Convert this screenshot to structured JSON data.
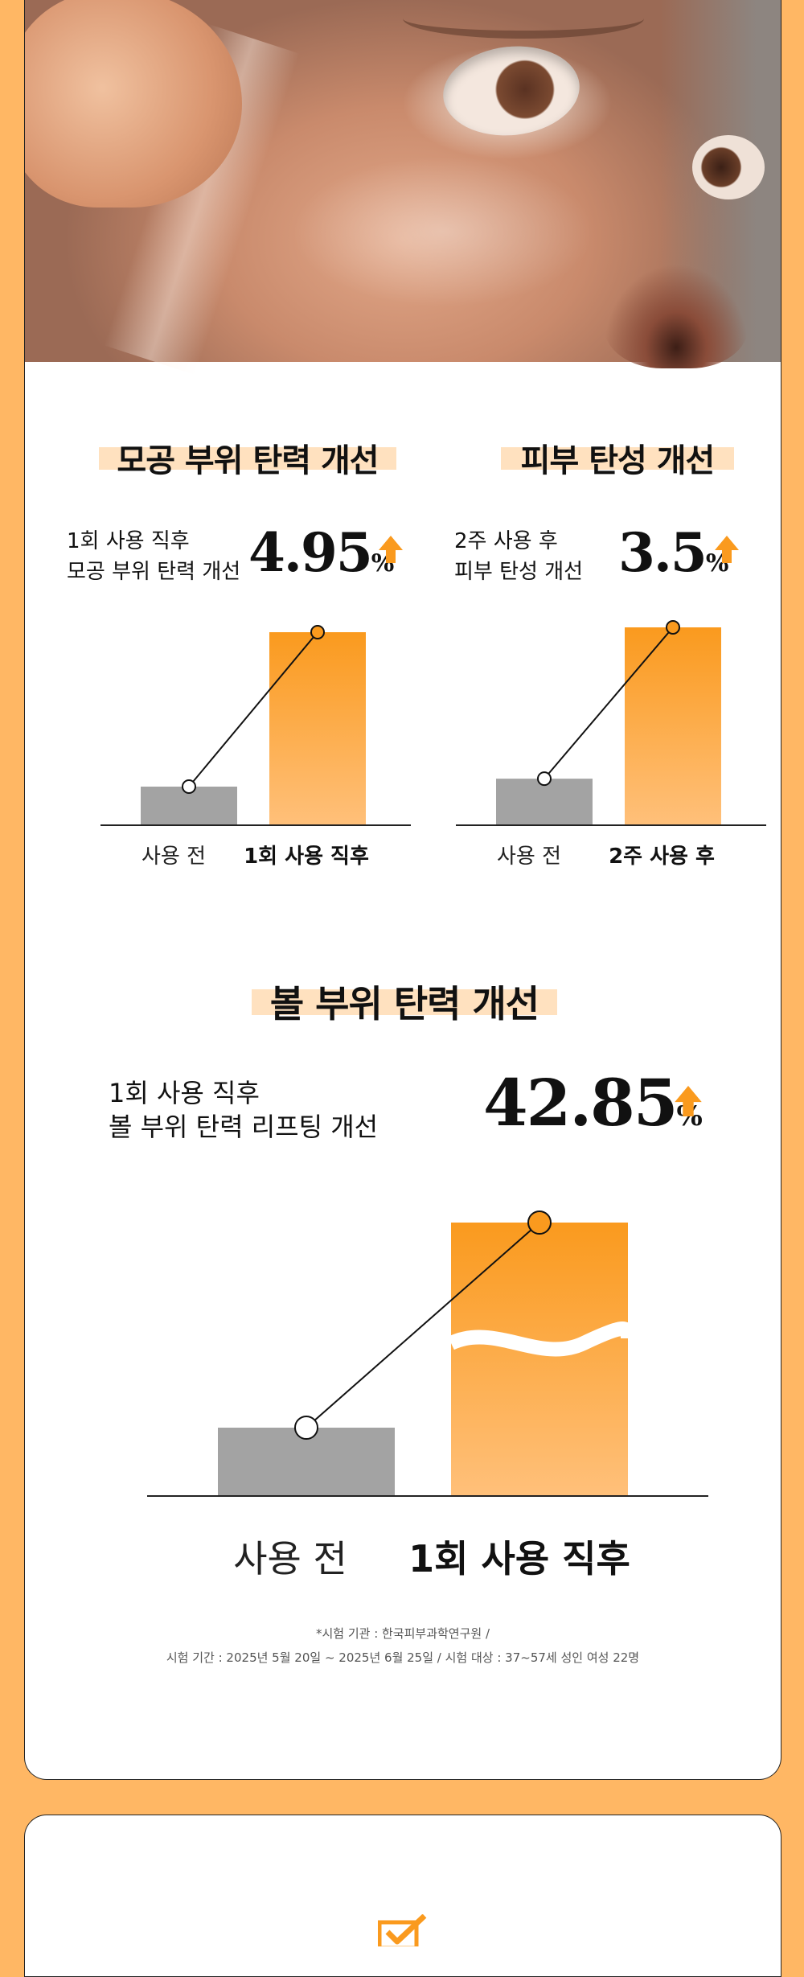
{
  "colors": {
    "accent": "#fa9a1e",
    "bar_before": "#a3a3a3",
    "highlight": "#ffe1bf",
    "background": "#ffb764"
  },
  "hero": {
    "image": "skin-patch-photo"
  },
  "charts": {
    "pore": {
      "title": "모공 부위 탄력 개선",
      "label_line1": "1회 사용 직후",
      "label_line2": "모공 부위 탄력 개선",
      "value": "4.95",
      "unit": "%",
      "x_before": "사용 전",
      "x_after": "1회 사용 직후"
    },
    "elasticity": {
      "title": "피부 탄성 개선",
      "label_line1": "2주 사용 후",
      "label_line2": "피부 탄성 개선",
      "value": "3.5",
      "unit": "%",
      "x_before": "사용 전",
      "x_after": "2주 사용 후"
    },
    "cheek": {
      "title": "볼 부위 탄력 개선",
      "label_line1": "1회 사용 직후",
      "label_line2": "볼 부위 탄력 리프팅 개선",
      "value": "42.85",
      "unit": "%",
      "x_before": "사용 전",
      "x_after": "1회 사용 직후"
    }
  },
  "chart_data": [
    {
      "type": "bar",
      "title": "모공 부위 탄력 개선",
      "categories": [
        "사용 전",
        "1회 사용 직후"
      ],
      "values": [
        20,
        100
      ],
      "annotation": "4.95%",
      "axis_visible": false,
      "grid": false
    },
    {
      "type": "bar",
      "title": "피부 탄성 개선",
      "categories": [
        "사용 전",
        "2주 사용 후"
      ],
      "values": [
        20,
        85
      ],
      "annotation": "3.5%",
      "axis_visible": false,
      "grid": false
    },
    {
      "type": "bar",
      "title": "볼 부위 탄력 개선",
      "categories": [
        "사용 전",
        "1회 사용 직후"
      ],
      "values": [
        25,
        100
      ],
      "annotation": "42.85%",
      "axis_visible": false,
      "grid": false,
      "axis_break": true
    }
  ],
  "footnote": {
    "line1": "*시험 기관 : 한국피부과학연구원 /",
    "line2": "시험 기간 : 2025년 5월 20일 ~ 2025년 6월 25일 / 시험 대상 : 37~57세 성인 여성 22명"
  }
}
